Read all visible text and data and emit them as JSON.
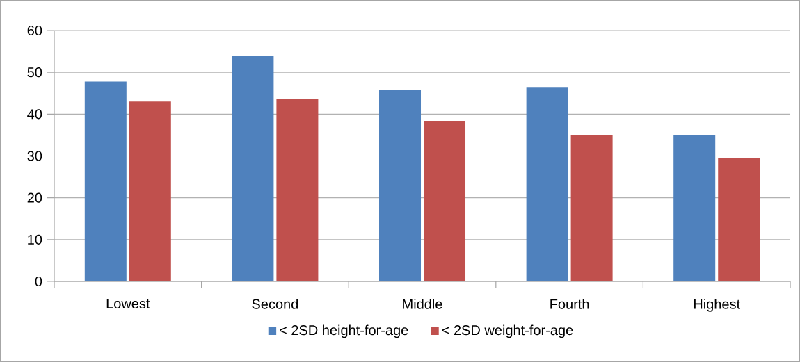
{
  "chart_data": {
    "type": "bar",
    "categories": [
      "Lowest",
      "Second",
      "Middle",
      "Fourth",
      "Highest"
    ],
    "series": [
      {
        "name": "< 2SD height-for-age",
        "color": "#4f81bd",
        "values": [
          47.8,
          54.0,
          45.8,
          46.5,
          34.9
        ]
      },
      {
        "name": "< 2SD weight-for-age",
        "color": "#c0504d",
        "values": [
          43.0,
          43.7,
          38.4,
          34.9,
          29.4
        ]
      }
    ],
    "ylim": [
      0,
      60
    ],
    "yticks": [
      0,
      10,
      20,
      30,
      40,
      50,
      60
    ],
    "grid": "y",
    "legend": "bottom"
  }
}
